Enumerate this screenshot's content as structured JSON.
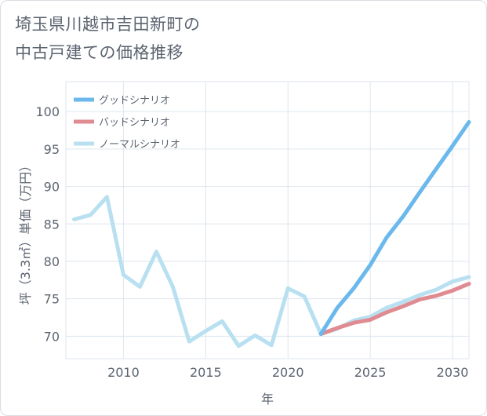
{
  "title_lines": [
    "埼玉県川越市吉田新町の",
    "中古戸建ての価格推移"
  ],
  "colors": {
    "good": "#6ab8ec",
    "bad": "#e08a92",
    "normal": "#b8e0f0",
    "grid": "#dde6ee",
    "axis": "#5c6470"
  },
  "chart_data": {
    "type": "line",
    "xlabel": "年",
    "ylabel": "坪（3.3㎡）単価（万円）",
    "xlim": [
      2006.5,
      2031
    ],
    "ylim": [
      67,
      104
    ],
    "xticks": [
      2010,
      2015,
      2020,
      2025,
      2030
    ],
    "yticks": [
      70,
      75,
      80,
      85,
      90,
      95,
      100
    ],
    "grid": true,
    "legend_position": "top-left",
    "series": [
      {
        "name": "グッドシナリオ",
        "key": "good",
        "x": [
          2022,
          2023,
          2024,
          2025,
          2026,
          2027,
          2028,
          2029,
          2030,
          2031
        ],
        "y": [
          70.3,
          73.8,
          76.4,
          79.5,
          83.2,
          86.0,
          89.2,
          92.3,
          95.4,
          98.6
        ]
      },
      {
        "name": "バッドシナリオ",
        "key": "bad",
        "x": [
          2022,
          2023,
          2024,
          2025,
          2026,
          2027,
          2028,
          2029,
          2030,
          2031
        ],
        "y": [
          70.3,
          71.1,
          71.8,
          72.2,
          73.2,
          74.0,
          74.9,
          75.4,
          76.1,
          77.0
        ]
      },
      {
        "name": "ノーマルシナリオ",
        "key": "normal",
        "x": [
          2007,
          2008,
          2009,
          2010,
          2011,
          2012,
          2013,
          2014,
          2015,
          2016,
          2017,
          2018,
          2019,
          2020,
          2021,
          2022,
          2023,
          2024,
          2025,
          2026,
          2027,
          2028,
          2029,
          2030,
          2031
        ],
        "y": [
          85.6,
          86.2,
          88.6,
          78.2,
          76.6,
          81.3,
          76.6,
          69.3,
          70.7,
          72.0,
          68.7,
          70.1,
          68.8,
          76.4,
          75.3,
          70.3,
          71.0,
          72.1,
          72.6,
          73.8,
          74.6,
          75.5,
          76.2,
          77.3,
          77.9
        ]
      }
    ]
  }
}
